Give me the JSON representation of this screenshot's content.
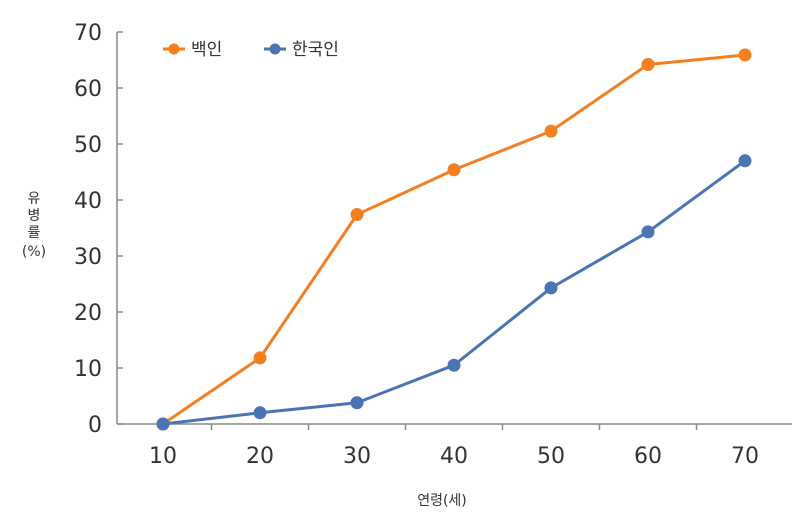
{
  "chart_data": {
    "type": "line",
    "xlabel": "연령(세)",
    "ylabel_lines": [
      "유",
      "병",
      "률",
      "(%)"
    ],
    "categories": [
      10,
      20,
      30,
      40,
      50,
      60,
      70
    ],
    "ylim": [
      0,
      70
    ],
    "yticks": [
      0,
      10,
      20,
      30,
      40,
      50,
      60,
      70
    ],
    "grid": false,
    "legend_position": "top-left",
    "series": [
      {
        "name": "백인",
        "color": "#F47F21",
        "values": [
          0,
          11.8,
          37.4,
          45.4,
          52.3,
          64.2,
          65.9
        ]
      },
      {
        "name": "한국인",
        "color": "#4A74B4",
        "values": [
          0,
          2.0,
          3.8,
          10.5,
          24.3,
          34.3,
          47.0
        ]
      }
    ]
  }
}
